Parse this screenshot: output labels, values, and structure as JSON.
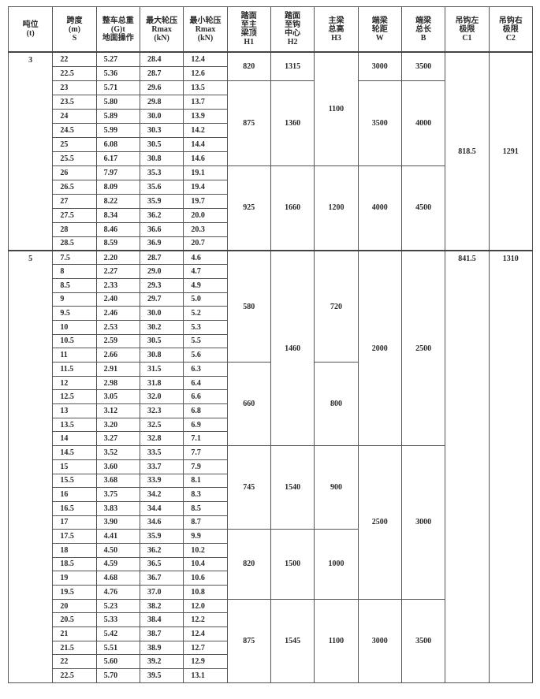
{
  "headers": [
    [
      "吨位",
      "(t)"
    ],
    [
      "跨度",
      "(m)",
      "S"
    ],
    [
      "整车总重",
      "(G)t",
      "地面操作"
    ],
    [
      "最大轮压",
      "Rmax",
      "(kN)"
    ],
    [
      "最小轮压",
      "Rmax",
      "(kN)"
    ],
    [
      "踏面",
      "至主",
      "梁顶",
      "H1"
    ],
    [
      "踏面",
      "至钩",
      "中心",
      "H2"
    ],
    [
      "主梁",
      "总高",
      "H3"
    ],
    [
      "端梁",
      "轮距",
      "W"
    ],
    [
      "端梁",
      "总长",
      "B"
    ],
    [
      "吊钩左",
      "极限",
      "C1"
    ],
    [
      "吊钩右",
      "极限",
      "C2"
    ]
  ],
  "sections": [
    {
      "tonnage": "3",
      "rows": [
        [
          "22",
          "5.27",
          "28.4",
          "12.4"
        ],
        [
          "22.5",
          "5.36",
          "28.7",
          "12.6"
        ],
        [
          "23",
          "5.71",
          "29.6",
          "13.5"
        ],
        [
          "23.5",
          "5.80",
          "29.8",
          "13.7"
        ],
        [
          "24",
          "5.89",
          "30.0",
          "13.9"
        ],
        [
          "24.5",
          "5.99",
          "30.3",
          "14.2"
        ],
        [
          "25",
          "6.08",
          "30.5",
          "14.4"
        ],
        [
          "25.5",
          "6.17",
          "30.8",
          "14.6"
        ],
        [
          "26",
          "7.97",
          "35.3",
          "19.1"
        ],
        [
          "26.5",
          "8.09",
          "35.6",
          "19.4"
        ],
        [
          "27",
          "8.22",
          "35.9",
          "19.7"
        ],
        [
          "27.5",
          "8.34",
          "36.2",
          "20.0"
        ],
        [
          "28",
          "8.46",
          "36.6",
          "20.3"
        ],
        [
          "28.5",
          "8.59",
          "36.9",
          "20.7"
        ]
      ],
      "H1": [
        {
          "v": "820",
          "span": 2
        },
        {
          "v": "875",
          "span": 6
        },
        {
          "v": "925",
          "span": 6
        }
      ],
      "H2": [
        {
          "v": "1315",
          "span": 2
        },
        {
          "v": "1360",
          "span": 6
        },
        {
          "v": "1660",
          "span": 6
        }
      ],
      "H3": [
        {
          "v": "1100",
          "span": 8
        },
        {
          "v": "1200",
          "span": 6
        }
      ],
      "W": [
        {
          "v": "3000",
          "span": 2
        },
        {
          "v": "3500",
          "span": 6
        },
        {
          "v": "4000",
          "span": 6
        }
      ],
      "B": [
        {
          "v": "3500",
          "span": 2
        },
        {
          "v": "4000",
          "span": 6
        },
        {
          "v": "4500",
          "span": 6
        }
      ],
      "C1": [
        {
          "v": "818.5",
          "span": 14
        }
      ],
      "C2": [
        {
          "v": "1291",
          "span": 14
        }
      ]
    },
    {
      "tonnage": "5",
      "rows": [
        [
          "7.5",
          "2.20",
          "28.7",
          "4.6"
        ],
        [
          "8",
          "2.27",
          "29.0",
          "4.7"
        ],
        [
          "8.5",
          "2.33",
          "29.3",
          "4.9"
        ],
        [
          "9",
          "2.40",
          "29.7",
          "5.0"
        ],
        [
          "9.5",
          "2.46",
          "30.0",
          "5.2"
        ],
        [
          "10",
          "2.53",
          "30.2",
          "5.3"
        ],
        [
          "10.5",
          "2.59",
          "30.5",
          "5.5"
        ],
        [
          "11",
          "2.66",
          "30.8",
          "5.6"
        ],
        [
          "11.5",
          "2.91",
          "31.5",
          "6.3"
        ],
        [
          "12",
          "2.98",
          "31.8",
          "6.4"
        ],
        [
          "12.5",
          "3.05",
          "32.0",
          "6.6"
        ],
        [
          "13",
          "3.12",
          "32.3",
          "6.8"
        ],
        [
          "13.5",
          "3.20",
          "32.5",
          "6.9"
        ],
        [
          "14",
          "3.27",
          "32.8",
          "7.1"
        ],
        [
          "14.5",
          "3.52",
          "33.5",
          "7.7"
        ],
        [
          "15",
          "3.60",
          "33.7",
          "7.9"
        ],
        [
          "15.5",
          "3.68",
          "33.9",
          "8.1"
        ],
        [
          "16",
          "3.75",
          "34.2",
          "8.3"
        ],
        [
          "16.5",
          "3.83",
          "34.4",
          "8.5"
        ],
        [
          "17",
          "3.90",
          "34.6",
          "8.7"
        ],
        [
          "17.5",
          "4.41",
          "35.9",
          "9.9"
        ],
        [
          "18",
          "4.50",
          "36.2",
          "10.2"
        ],
        [
          "18.5",
          "4.59",
          "36.5",
          "10.4"
        ],
        [
          "19",
          "4.68",
          "36.7",
          "10.6"
        ],
        [
          "19.5",
          "4.76",
          "37.0",
          "10.8"
        ],
        [
          "20",
          "5.23",
          "38.2",
          "12.0"
        ],
        [
          "20.5",
          "5.33",
          "38.4",
          "12.2"
        ],
        [
          "21",
          "5.42",
          "38.7",
          "12.4"
        ],
        [
          "21.5",
          "5.51",
          "38.9",
          "12.7"
        ],
        [
          "22",
          "5.60",
          "39.2",
          "12.9"
        ],
        [
          "22.5",
          "5.70",
          "39.5",
          "13.1"
        ]
      ],
      "H1": [
        {
          "v": "580",
          "span": 8
        },
        {
          "v": "660",
          "span": 6
        },
        {
          "v": "745",
          "span": 6
        },
        {
          "v": "820",
          "span": 5
        },
        {
          "v": "875",
          "span": 6
        }
      ],
      "H2": [
        {
          "v": "1460",
          "span": 14
        },
        {
          "v": "1540",
          "span": 6
        },
        {
          "v": "1500",
          "span": 5
        },
        {
          "v": "1545",
          "span": 6
        }
      ],
      "H3": [
        {
          "v": "720",
          "span": 8
        },
        {
          "v": "800",
          "span": 6
        },
        {
          "v": "900",
          "span": 6
        },
        {
          "v": "1000",
          "span": 5
        },
        {
          "v": "1100",
          "span": 6
        }
      ],
      "W": [
        {
          "v": "2000",
          "span": 14
        },
        {
          "v": "2500",
          "span": 11
        },
        {
          "v": "3000",
          "span": 6
        }
      ],
      "B": [
        {
          "v": "2500",
          "span": 14
        },
        {
          "v": "3000",
          "span": 11
        },
        {
          "v": "3500",
          "span": 6
        }
      ],
      "C1": [
        {
          "v": "841.5",
          "span": 31
        }
      ],
      "C2": [
        {
          "v": "1310",
          "span": 31
        }
      ]
    }
  ]
}
